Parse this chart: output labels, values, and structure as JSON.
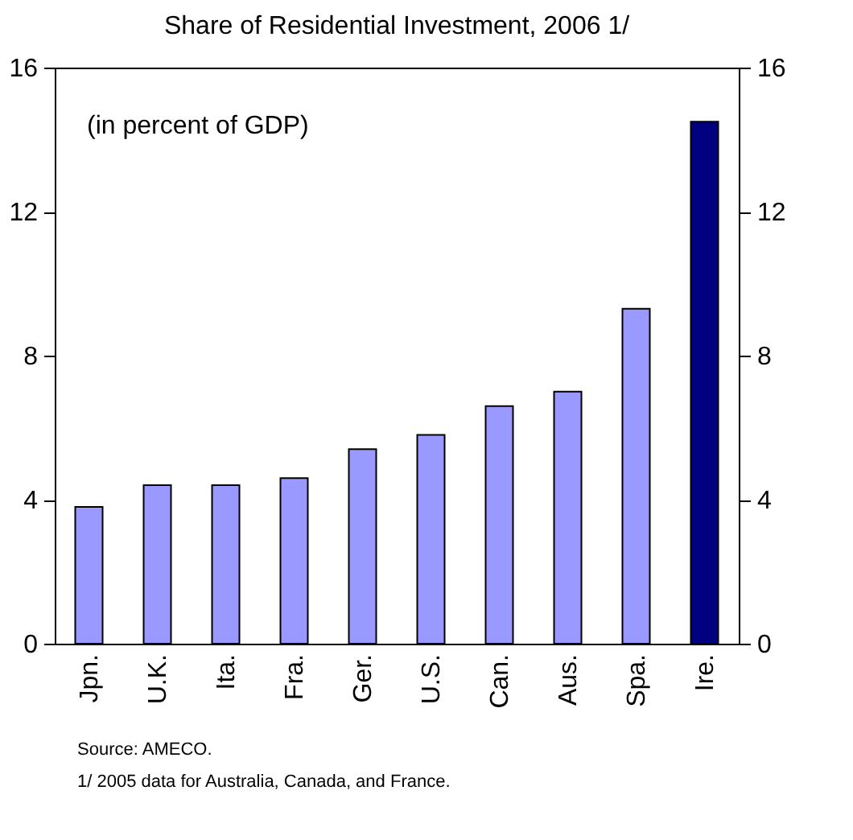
{
  "chart_data": {
    "type": "bar",
    "title": "Share of Residential Investment, 2006 1/",
    "subtitle": "(in percent of GDP)",
    "categories": [
      "Jpn.",
      "U.K.",
      "Ita.",
      "Fra.",
      "Ger.",
      "U.S.",
      "Can.",
      "Aus.",
      "Spa.",
      "Ire."
    ],
    "values": [
      3.8,
      4.4,
      4.4,
      4.6,
      5.4,
      5.8,
      6.6,
      7.0,
      9.3,
      14.5
    ],
    "colors": [
      "#9999ff",
      "#9999ff",
      "#9999ff",
      "#9999ff",
      "#9999ff",
      "#9999ff",
      "#9999ff",
      "#9999ff",
      "#9999ff",
      "#000080"
    ],
    "ylim": [
      0,
      16
    ],
    "yticks": [
      0,
      4,
      8,
      12,
      16
    ],
    "y2lim": [
      0,
      16
    ],
    "y2ticks": [
      0,
      4,
      8,
      12,
      16
    ],
    "grid": false,
    "legend": false,
    "annotations": [
      "Source: AMECO.",
      "1/ 2005 data for Australia, Canada, and France."
    ]
  }
}
